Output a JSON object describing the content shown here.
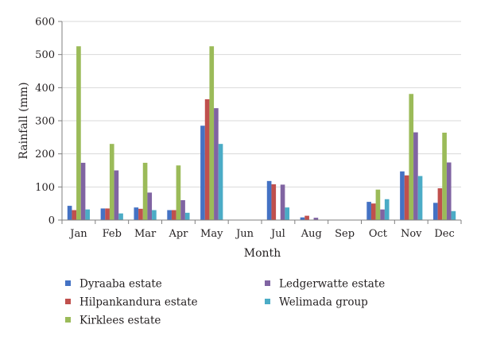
{
  "chart_data": {
    "type": "bar",
    "xlabel": "Month",
    "ylabel": "Rainfall (mm)",
    "ylim": [
      0,
      600
    ],
    "yticks": [
      "0",
      "100",
      "200",
      "300",
      "400",
      "500",
      "600"
    ],
    "categories": [
      "Jan",
      "Feb",
      "Mar",
      "Apr",
      "May",
      "Jun",
      "Jul",
      "Aug",
      "Sep",
      "Oct",
      "Nov",
      "Dec"
    ],
    "legend_position": "bottom",
    "series": [
      {
        "name": "Dyraaba estate",
        "color": "#4472c4",
        "values": [
          43,
          35,
          38,
          30,
          285,
          0,
          118,
          8,
          0,
          55,
          147,
          52
        ]
      },
      {
        "name": "Hilpankandura estate",
        "color": "#c0504d",
        "values": [
          30,
          35,
          34,
          30,
          365,
          0,
          108,
          13,
          0,
          50,
          135,
          96
        ]
      },
      {
        "name": "Kirklees estate",
        "color": "#9bbb59",
        "values": [
          525,
          230,
          173,
          165,
          525,
          0,
          0,
          0,
          0,
          92,
          381,
          264
        ]
      },
      {
        "name": "Ledgerwatte estate",
        "color": "#8064a2",
        "values": [
          173,
          150,
          83,
          60,
          338,
          0,
          107,
          7,
          0,
          32,
          265,
          174
        ]
      },
      {
        "name": "Welimada group",
        "color": "#4bacc6",
        "values": [
          32,
          20,
          30,
          22,
          230,
          0,
          38,
          0,
          0,
          63,
          133,
          27
        ]
      }
    ]
  }
}
